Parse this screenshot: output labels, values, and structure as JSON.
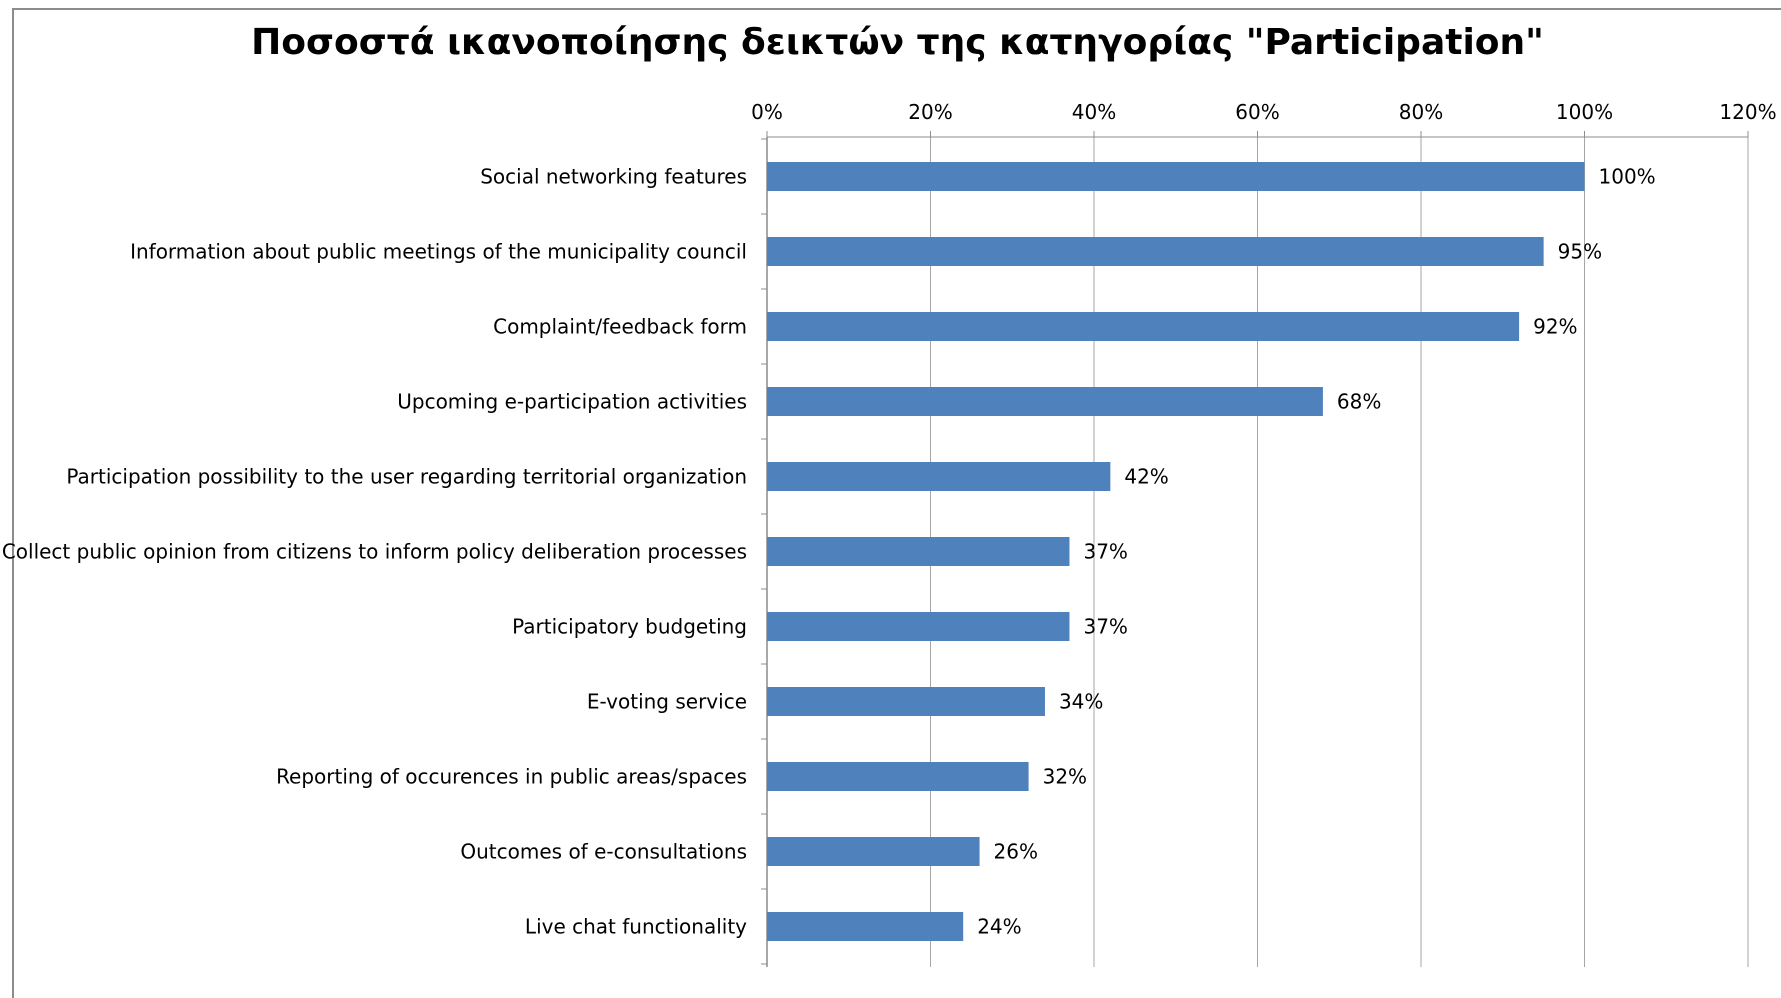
{
  "chart_data": {
    "type": "bar",
    "orientation": "horizontal",
    "title": "Ποσοστά ικανοποίησης δεικτών της κατηγορίας \"Participation\"",
    "xlabel": "",
    "ylabel": "",
    "xlim": [
      0,
      120
    ],
    "x_ticks": [
      0,
      20,
      40,
      60,
      80,
      100,
      120
    ],
    "x_tick_suffix": "%",
    "x_axis_position": "top",
    "grid": true,
    "legend": "none",
    "categories": [
      "Social networking features",
      "Information about public meetings of the municipality council",
      "Complaint/feedback form",
      "Upcoming e-participation activities",
      "Participation possibility to the user regarding territorial organization",
      "Collect public opinion from citizens to inform policy deliberation processes",
      "Participatory budgeting",
      "E-voting service",
      "Reporting of occurences in public areas/spaces",
      "Outcomes of e-consultations",
      "Live chat functionality"
    ],
    "values": [
      100,
      95,
      92,
      68,
      42,
      37,
      37,
      34,
      32,
      26,
      24
    ],
    "value_labels": [
      "100%",
      "95%",
      "92%",
      "68%",
      "42%",
      "37%",
      "37%",
      "34%",
      "32%",
      "26%",
      "24%"
    ],
    "colors": {
      "bar": "#4f81bd",
      "grid": "#a6a6a6",
      "axis": "#8c8c8c",
      "text": "#000000"
    }
  }
}
